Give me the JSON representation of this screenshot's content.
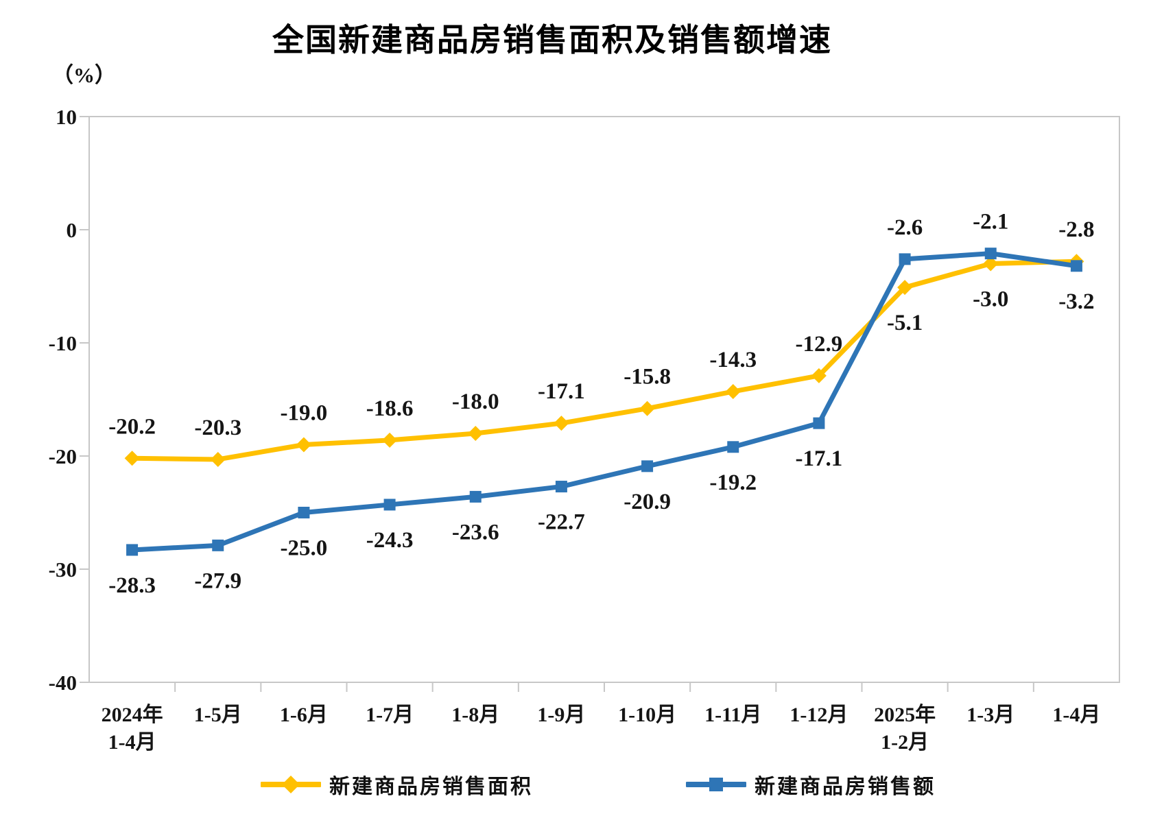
{
  "title": "全国新建商品房销售面积及销售额增速",
  "y_axis_unit": "（%）",
  "colors": {
    "series_area": "#FFC000",
    "series_value": "#2E75B6",
    "axis_line": "#C7C7C7",
    "text": "#151515",
    "title_text": "#000000",
    "background": "#FFFFFF"
  },
  "chart_data": {
    "type": "line",
    "title": "全国新建商品房销售面积及销售额增速",
    "ylabel": "（%）",
    "xlabel": "",
    "ylim": [
      -40,
      10
    ],
    "yticks": [
      10,
      0,
      -10,
      -20,
      -30,
      -40
    ],
    "grid": false,
    "legend_position": "bottom",
    "categories": [
      "2024年\n1-4月",
      "1-5月",
      "1-6月",
      "1-7月",
      "1-8月",
      "1-9月",
      "1-10月",
      "1-11月",
      "1-12月",
      "2025年\n1-2月",
      "1-3月",
      "1-4月"
    ],
    "series": [
      {
        "name": "新建商品房销售面积",
        "color": "#FFC000",
        "marker": "diamond",
        "values": [
          -20.2,
          -20.3,
          -19.0,
          -18.6,
          -18.0,
          -17.1,
          -15.8,
          -14.3,
          -12.9,
          -5.1,
          -3.0,
          -2.8
        ],
        "label_sides": [
          "above",
          "above",
          "above",
          "above",
          "above",
          "above",
          "above",
          "above",
          "above",
          "below",
          "below",
          "above"
        ]
      },
      {
        "name": "新建商品房销售额",
        "color": "#2E75B6",
        "marker": "square",
        "values": [
          -28.3,
          -27.9,
          -25.0,
          -24.3,
          -23.6,
          -22.7,
          -20.9,
          -19.2,
          -17.1,
          -2.6,
          -2.1,
          -3.2
        ],
        "label_sides": [
          "below",
          "below",
          "below",
          "below",
          "below",
          "below",
          "below",
          "below",
          "below",
          "above",
          "above",
          "below"
        ]
      }
    ]
  }
}
